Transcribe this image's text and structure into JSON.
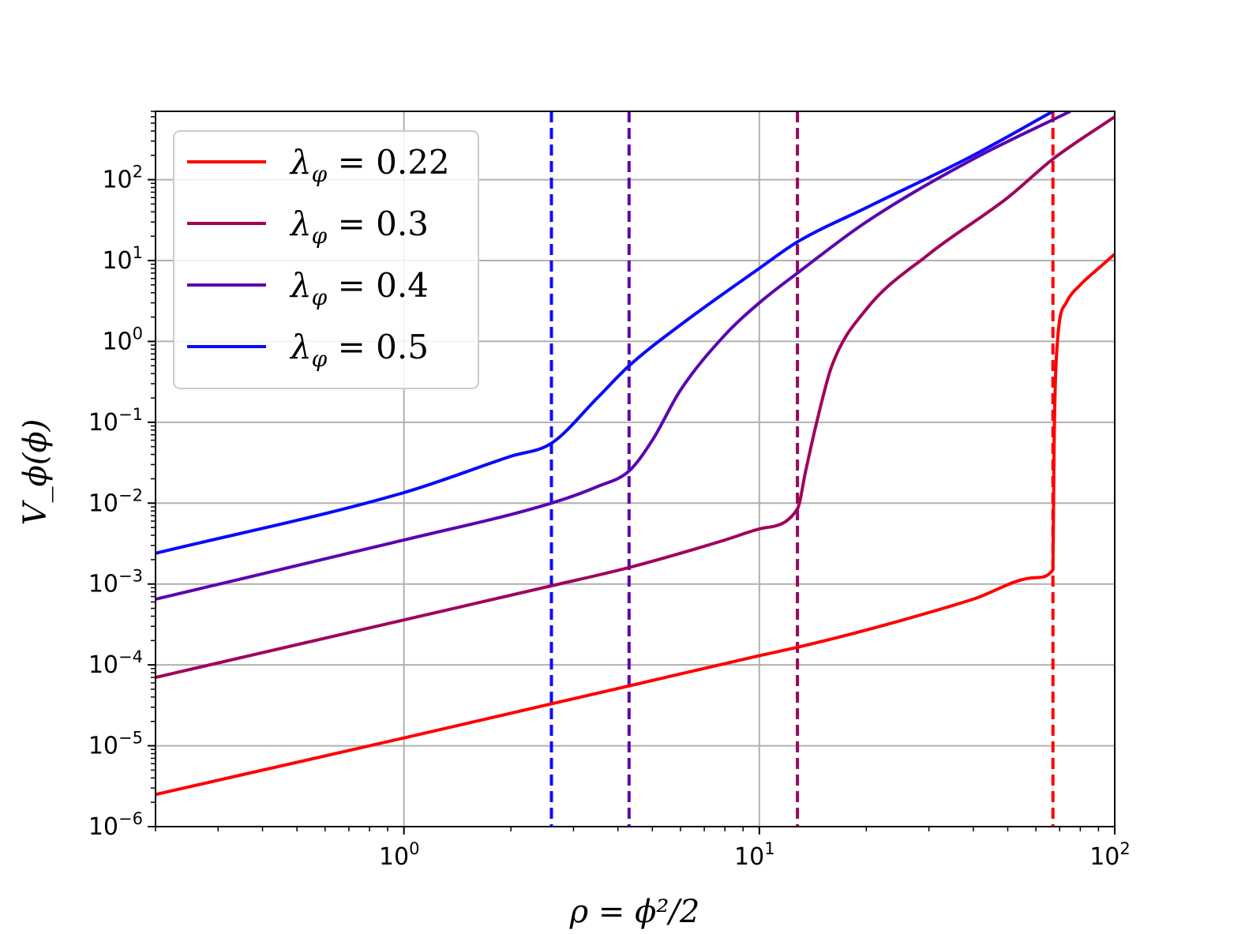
{
  "chart_data": {
    "type": "line",
    "title": "",
    "xlabel": "ρ = ϕ²/2",
    "ylabel": "V_ϕ(ϕ)",
    "xscale": "log",
    "yscale": "log",
    "xlim": [
      0.2,
      100
    ],
    "ylim": [
      1e-06,
      700
    ],
    "grid": true,
    "legend_position": "top-left",
    "x_ticks": [
      {
        "value": 1,
        "label": "10",
        "exp": "0"
      },
      {
        "value": 10,
        "label": "10",
        "exp": "1"
      },
      {
        "value": 100,
        "label": "10",
        "exp": "2"
      }
    ],
    "y_ticks": [
      {
        "value": 1e-06,
        "label": "10",
        "exp": "−6"
      },
      {
        "value": 1e-05,
        "label": "10",
        "exp": "−5"
      },
      {
        "value": 0.0001,
        "label": "10",
        "exp": "−4"
      },
      {
        "value": 0.001,
        "label": "10",
        "exp": "−3"
      },
      {
        "value": 0.01,
        "label": "10",
        "exp": "−2"
      },
      {
        "value": 0.1,
        "label": "10",
        "exp": "−1"
      },
      {
        "value": 1,
        "label": "10",
        "exp": "0"
      },
      {
        "value": 10,
        "label": "10",
        "exp": "1"
      },
      {
        "value": 100,
        "label": "10",
        "exp": "2"
      }
    ],
    "series": [
      {
        "name": "λφ = 0.22",
        "name_value": "0.22",
        "color": "#ff0000",
        "style": "solid",
        "points": [
          [
            0.2,
            2.5e-06
          ],
          [
            1,
            1.25e-05
          ],
          [
            2.6,
            3.3e-05
          ],
          [
            4.3,
            5.5e-05
          ],
          [
            10,
            0.00013
          ],
          [
            12.8,
            0.000165
          ],
          [
            20,
            0.00027
          ],
          [
            40,
            0.00065
          ],
          [
            60,
            0.0012
          ],
          [
            67,
            0.0015
          ],
          [
            67.5,
            0.05
          ],
          [
            69,
            1.0
          ],
          [
            73,
            3.0
          ],
          [
            80,
            5.0
          ],
          [
            90,
            8.0
          ],
          [
            100,
            12.0
          ]
        ]
      },
      {
        "name": "λφ = 0.3",
        "name_value": "0.3",
        "color": "#a0045a",
        "style": "solid",
        "points": [
          [
            0.2,
            7e-05
          ],
          [
            1,
            0.00036
          ],
          [
            2.6,
            0.00095
          ],
          [
            4.3,
            0.0016
          ],
          [
            8,
            0.0035
          ],
          [
            10,
            0.0048
          ],
          [
            12.8,
            0.0085
          ],
          [
            13.5,
            0.025
          ],
          [
            14.5,
            0.1
          ],
          [
            16,
            0.5
          ],
          [
            20,
            2.5
          ],
          [
            30,
            12
          ],
          [
            50,
            60
          ],
          [
            67,
            180
          ],
          [
            100,
            600
          ]
        ]
      },
      {
        "name": "λφ = 0.4",
        "name_value": "0.4",
        "color": "#5a06b0",
        "style": "solid",
        "points": [
          [
            0.2,
            0.00065
          ],
          [
            1,
            0.0035
          ],
          [
            2.6,
            0.01
          ],
          [
            3.5,
            0.016
          ],
          [
            4.3,
            0.025
          ],
          [
            5,
            0.06
          ],
          [
            6,
            0.25
          ],
          [
            8,
            1.2
          ],
          [
            10,
            3
          ],
          [
            12.8,
            7
          ],
          [
            20,
            30
          ],
          [
            40,
            180
          ],
          [
            75,
            700
          ]
        ]
      },
      {
        "name": "λφ = 0.5",
        "name_value": "0.5",
        "color": "#0a0aff",
        "style": "solid",
        "points": [
          [
            0.2,
            0.0024
          ],
          [
            1,
            0.0135
          ],
          [
            2,
            0.038
          ],
          [
            2.6,
            0.055
          ],
          [
            3.5,
            0.2
          ],
          [
            4.3,
            0.5
          ],
          [
            6,
            1.6
          ],
          [
            10,
            8
          ],
          [
            12.8,
            17
          ],
          [
            20,
            45
          ],
          [
            40,
            200
          ],
          [
            67,
            700
          ]
        ]
      }
    ],
    "vlines": [
      {
        "x": 2.6,
        "color": "#0a0aff",
        "style": "dashed"
      },
      {
        "x": 4.3,
        "color": "#5a06b0",
        "style": "dashed"
      },
      {
        "x": 12.8,
        "color": "#a0045a",
        "style": "dashed"
      },
      {
        "x": 67,
        "color": "#ff0000",
        "style": "dashed"
      }
    ]
  }
}
